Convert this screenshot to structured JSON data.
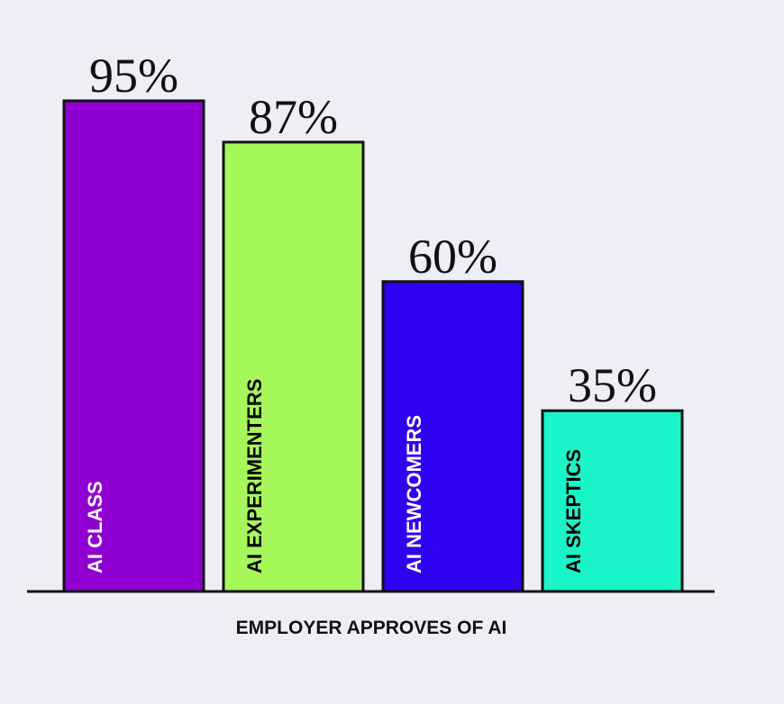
{
  "chart_data": {
    "type": "bar",
    "x_label": "EMPLOYER APPROVES OF AI",
    "categories": [
      "AI CLASS",
      "AI EXPERIMENTERS",
      "AI NEWCOMERS",
      "AI SKEPTICS"
    ],
    "values": [
      95,
      87,
      60,
      35
    ],
    "value_labels": [
      "95%",
      "87%",
      "60%",
      "35%"
    ],
    "colors": [
      "#9000d2",
      "#a6f75a",
      "#3000f0",
      "#19f5c8"
    ]
  }
}
